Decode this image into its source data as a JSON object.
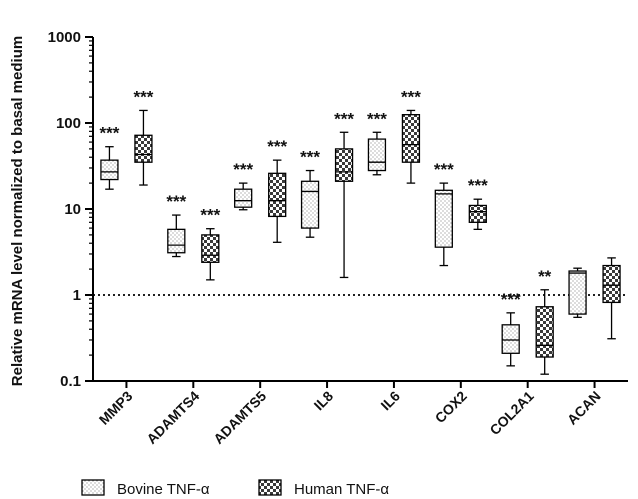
{
  "chart_data": {
    "type": "box",
    "ylabel": "Relative mRNA level normalized to basal medium",
    "yscale": "log",
    "ylim": [
      0.1,
      1000
    ],
    "yticks": [
      0.1,
      1,
      10,
      100,
      1000
    ],
    "ytick_labels": [
      "0.1",
      "1",
      "10",
      "100",
      "1000"
    ],
    "reference_line": 1,
    "categories": [
      "MMP3",
      "ADAMTS4",
      "ADAMTS5",
      "IL8",
      "IL6",
      "COX2",
      "COL2A1",
      "ACAN"
    ],
    "series": [
      {
        "name": "Bovine TNF-α",
        "pattern": "dots",
        "boxes": [
          {
            "min": 17,
            "q1": 22,
            "median": 27,
            "q3": 37,
            "max": 53
          },
          {
            "min": 2.8,
            "q1": 3.1,
            "median": 3.8,
            "q3": 5.8,
            "max": 8.5
          },
          {
            "min": 9.8,
            "q1": 10.5,
            "median": 12.5,
            "q3": 17,
            "max": 20
          },
          {
            "min": 4.7,
            "q1": 6,
            "median": 16,
            "q3": 21,
            "max": 28
          },
          {
            "min": 25,
            "q1": 28,
            "median": 35,
            "q3": 65,
            "max": 78
          },
          {
            "min": 2.2,
            "q1": 3.6,
            "median": 15,
            "q3": 16.5,
            "max": 20
          },
          {
            "min": 0.15,
            "q1": 0.21,
            "median": 0.3,
            "q3": 0.45,
            "max": 0.62
          },
          {
            "min": 0.55,
            "q1": 0.6,
            "median": 1.8,
            "q3": 1.9,
            "max": 2.05
          }
        ]
      },
      {
        "name": "Human TNF-α",
        "pattern": "checker",
        "boxes": [
          {
            "min": 19,
            "q1": 35,
            "median": 43,
            "q3": 72,
            "max": 140
          },
          {
            "min": 1.5,
            "q1": 2.4,
            "median": 2.9,
            "q3": 5,
            "max": 5.9
          },
          {
            "min": 4.1,
            "q1": 8.2,
            "median": 12.5,
            "q3": 26,
            "max": 37
          },
          {
            "min": 1.6,
            "q1": 21,
            "median": 27,
            "q3": 50,
            "max": 78
          },
          {
            "min": 20,
            "q1": 35,
            "median": 56,
            "q3": 125,
            "max": 140
          },
          {
            "min": 5.8,
            "q1": 7,
            "median": 9.3,
            "q3": 11,
            "max": 13
          },
          {
            "min": 0.12,
            "q1": 0.19,
            "median": 0.26,
            "q3": 0.73,
            "max": 1.15
          },
          {
            "min": 0.31,
            "q1": 0.82,
            "median": 1.3,
            "q3": 2.2,
            "max": 2.7
          }
        ]
      }
    ],
    "annotations": [
      {
        "category": "MMP3",
        "series": 0,
        "text": "***"
      },
      {
        "category": "MMP3",
        "series": 1,
        "text": "***"
      },
      {
        "category": "ADAMTS4",
        "series": 0,
        "text": "***"
      },
      {
        "category": "ADAMTS4",
        "series": 1,
        "text": "***"
      },
      {
        "category": "ADAMTS5",
        "series": 0,
        "text": "***"
      },
      {
        "category": "ADAMTS5",
        "series": 1,
        "text": "***"
      },
      {
        "category": "IL8",
        "series": 0,
        "text": "***"
      },
      {
        "category": "IL8",
        "series": 1,
        "text": "***"
      },
      {
        "category": "IL6",
        "series": 0,
        "text": "***"
      },
      {
        "category": "IL6",
        "series": 1,
        "text": "***"
      },
      {
        "category": "COX2",
        "series": 0,
        "text": "***"
      },
      {
        "category": "COX2",
        "series": 1,
        "text": "***"
      },
      {
        "category": "COL2A1",
        "series": 0,
        "text": "***"
      },
      {
        "category": "COL2A1",
        "series": 1,
        "text": "**"
      }
    ],
    "legend": {
      "position": "bottom-left",
      "entries": [
        "Bovine TNF-α",
        "Human TNF-α"
      ]
    },
    "grid": false
  }
}
